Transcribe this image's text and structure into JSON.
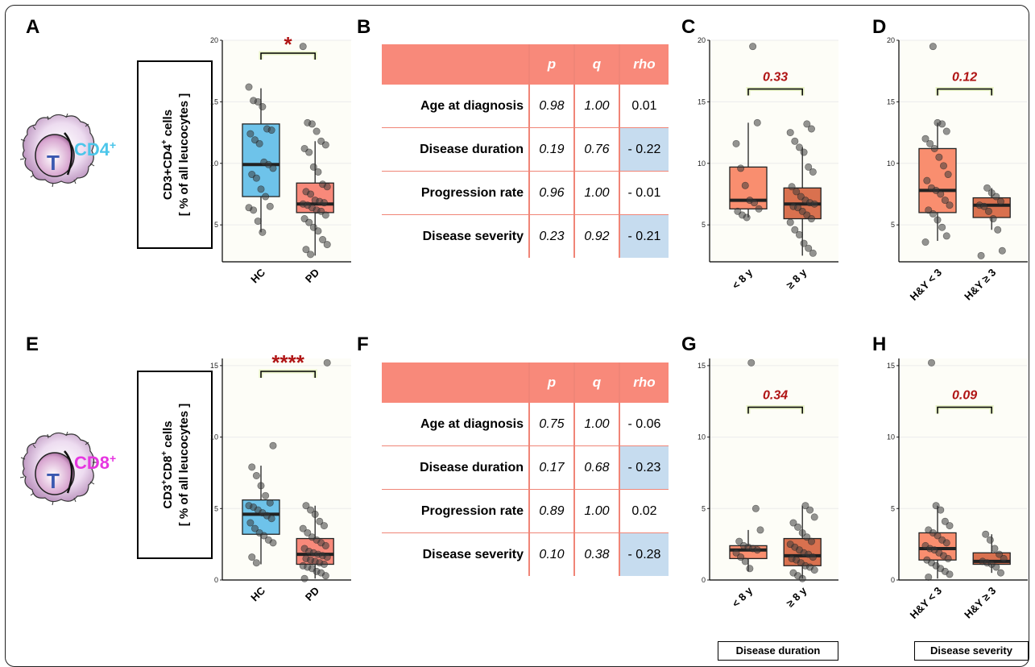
{
  "panels": {
    "A": "A",
    "B": "B",
    "C": "C",
    "D": "D",
    "E": "E",
    "F": "F",
    "G": "G",
    "H": "H"
  },
  "cd4": {
    "marker": "CD4",
    "marker_sup": "+",
    "ylabel_line1_pre": "CD3+CD4",
    "ylabel_line1_sup": "+",
    "ylabel_line1_post": " cells",
    "ylabel_line2": "[ % of all leucocytes ]"
  },
  "cd8": {
    "marker": "CD8",
    "marker_sup": "+",
    "ylabel_line1_a": "CD3",
    "ylabel_line1_sup1": "+",
    "ylabel_line1_b": "CD8",
    "ylabel_line1_sup2": "+",
    "ylabel_line1_post": " cells",
    "ylabel_line2": "[ % of all leucocytes ]"
  },
  "icon_letter": "T",
  "table_B": {
    "headers": [
      "",
      "p",
      "q",
      "rho"
    ],
    "rows": [
      {
        "label": "Age at diagnosis",
        "p": "0.98",
        "q": "1.00",
        "rho": "0.01",
        "highlight": false
      },
      {
        "label": "Disease duration",
        "p": "0.19",
        "q": "0.76",
        "rho": "- 0.22",
        "highlight": true
      },
      {
        "label": "Progression rate",
        "p": "0.96",
        "q": "1.00",
        "rho": "- 0.01",
        "highlight": false
      },
      {
        "label": "Disease severity",
        "p": "0.23",
        "q": "0.92",
        "rho": "- 0.21",
        "highlight": true
      }
    ]
  },
  "table_F": {
    "headers": [
      "",
      "p",
      "q",
      "rho"
    ],
    "rows": [
      {
        "label": "Age at diagnosis",
        "p": "0.75",
        "q": "1.00",
        "rho": "- 0.06",
        "highlight": false
      },
      {
        "label": "Disease duration",
        "p": "0.17",
        "q": "0.68",
        "rho": "- 0.23",
        "highlight": true
      },
      {
        "label": "Progression rate",
        "p": "0.89",
        "q": "1.00",
        "rho": "0.02",
        "highlight": false
      },
      {
        "label": "Disease severity",
        "p": "0.10",
        "q": "0.38",
        "rho": "- 0.28",
        "highlight": true
      }
    ]
  },
  "captions": {
    "duration": "Disease duration",
    "severity": "Disease severity"
  },
  "chart_data": [
    {
      "id": "A",
      "type": "box",
      "categories": [
        "HC",
        "PD"
      ],
      "ylim": [
        2,
        20
      ],
      "yticks": [
        5,
        10,
        15,
        20
      ],
      "colors": [
        "#6ec3ea",
        "#f8897a"
      ],
      "annotation": "*",
      "annotation_color": "#b01515",
      "boxes": [
        {
          "q1": 7.3,
          "median": 9.9,
          "q3": 13.2,
          "whisker_low": 4.4,
          "whisker_high": 16.1
        },
        {
          "q1": 6.0,
          "median": 6.7,
          "q3": 8.4,
          "whisker_low": 2.5,
          "whisker_high": 11.8
        }
      ],
      "points": [
        [
          16.2,
          15.1,
          15.0,
          14.6,
          12.8,
          12.7,
          12.4,
          11.9,
          11.6,
          10.1,
          9.9,
          9.6,
          9.1,
          8.8,
          7.9,
          7.3,
          6.5,
          6.4,
          6.2,
          5.3,
          4.4
        ],
        [
          19.5,
          13.3,
          13.2,
          12.6,
          11.8,
          11.5,
          11.2,
          10.9,
          9.7,
          9.3,
          8.3,
          8.1,
          7.7,
          7.5,
          7.0,
          6.9,
          6.8,
          6.7,
          6.6,
          6.4,
          6.2,
          6.1,
          5.8,
          5.5,
          5.2,
          4.8,
          4.5,
          3.8,
          3.4,
          3.0,
          2.6
        ]
      ]
    },
    {
      "id": "C",
      "type": "box",
      "categories": [
        "< 8 y",
        "≥ 8 y"
      ],
      "ylim": [
        2,
        20
      ],
      "yticks": [
        5,
        10,
        15,
        20
      ],
      "colors": [
        "#f98e6f",
        "#d9714f"
      ],
      "annotation": "0.33",
      "annotation_color": "#b01515",
      "boxes": [
        {
          "q1": 6.3,
          "median": 7.0,
          "q3": 9.7,
          "whisker_low": 5.6,
          "whisker_high": 13.3
        },
        {
          "q1": 5.5,
          "median": 6.7,
          "q3": 8.0,
          "whisker_low": 2.5,
          "whisker_high": 11.3
        }
      ],
      "points": [
        [
          19.5,
          13.3,
          11.6,
          9.6,
          8.2,
          7.0,
          6.8,
          6.3,
          6.1,
          5.8,
          5.6
        ],
        [
          13.2,
          12.8,
          12.5,
          11.8,
          11.3,
          10.9,
          9.7,
          9.3,
          8.1,
          7.7,
          7.3,
          7.0,
          6.8,
          6.7,
          6.5,
          6.4,
          6.1,
          5.8,
          5.5,
          5.2,
          4.6,
          4.2,
          3.5,
          3.1,
          2.7
        ]
      ]
    },
    {
      "id": "D",
      "type": "box",
      "categories": [
        "H&Y < 3",
        "H&Y ≥ 3"
      ],
      "ylim": [
        2,
        20
      ],
      "yticks": [
        5,
        10,
        15,
        20
      ],
      "colors": [
        "#f98e6f",
        "#d9714f"
      ],
      "annotation": "0.12",
      "annotation_color": "#b01515",
      "boxes": [
        {
          "q1": 6.0,
          "median": 7.8,
          "q3": 11.2,
          "whisker_low": 3.7,
          "whisker_high": 13.3
        },
        {
          "q1": 5.6,
          "median": 6.6,
          "q3": 7.2,
          "whisker_low": 4.6,
          "whisker_high": 8.0
        }
      ],
      "points": [
        [
          19.5,
          13.3,
          13.2,
          12.6,
          12.0,
          11.6,
          11.2,
          10.5,
          9.8,
          9.1,
          8.6,
          8.0,
          7.8,
          7.5,
          7.0,
          6.6,
          6.2,
          5.9,
          5.4,
          4.8,
          4.1,
          3.6
        ],
        [
          8.0,
          7.6,
          7.3,
          6.9,
          6.6,
          6.5,
          6.1,
          5.5,
          4.6,
          2.9,
          2.5
        ]
      ]
    },
    {
      "id": "E",
      "type": "box",
      "categories": [
        "HC",
        "PD"
      ],
      "ylim": [
        0,
        15.5
      ],
      "yticks": [
        0,
        5,
        10,
        15
      ],
      "colors": [
        "#6ec3ea",
        "#f8897a"
      ],
      "annotation": "****",
      "annotation_color": "#b01515",
      "boxes": [
        {
          "q1": 3.2,
          "median": 4.6,
          "q3": 5.6,
          "whisker_low": 1.1,
          "whisker_high": 8.0
        },
        {
          "q1": 1.1,
          "median": 1.8,
          "q3": 2.9,
          "whisker_low": 0.1,
          "whisker_high": 5.2
        }
      ],
      "points": [
        [
          9.4,
          7.9,
          7.3,
          6.6,
          5.9,
          5.4,
          5.2,
          5.1,
          4.9,
          4.7,
          4.5,
          4.3,
          4.0,
          3.6,
          3.3,
          3.1,
          2.8,
          2.6,
          1.6,
          1.2
        ],
        [
          15.2,
          5.2,
          4.9,
          4.6,
          4.1,
          3.8,
          3.6,
          3.3,
          3.0,
          2.8,
          2.6,
          2.4,
          2.2,
          2.0,
          1.9,
          1.8,
          1.7,
          1.6,
          1.5,
          1.4,
          1.3,
          1.2,
          1.1,
          1.0,
          0.9,
          0.8,
          0.6,
          0.5,
          0.3,
          0.1
        ]
      ]
    },
    {
      "id": "G",
      "type": "box",
      "categories": [
        "< 8 y",
        "≥ 8 y"
      ],
      "ylim": [
        0,
        15.5
      ],
      "yticks": [
        0,
        5,
        10,
        15
      ],
      "colors": [
        "#f98e6f",
        "#d9714f"
      ],
      "annotation": "0.34",
      "annotation_color": "#b01515",
      "boxes": [
        {
          "q1": 1.5,
          "median": 2.1,
          "q3": 2.4,
          "whisker_low": 0.6,
          "whisker_high": 3.5
        },
        {
          "q1": 1.0,
          "median": 1.7,
          "q3": 2.9,
          "whisker_low": 0.1,
          "whisker_high": 5.2
        }
      ],
      "points": [
        [
          15.2,
          5.0,
          3.5,
          2.7,
          2.4,
          2.3,
          2.2,
          2.1,
          1.9,
          1.6,
          1.3,
          0.8
        ],
        [
          5.2,
          4.9,
          4.4,
          4.0,
          3.7,
          3.3,
          3.0,
          2.7,
          2.5,
          2.3,
          2.1,
          1.9,
          1.8,
          1.6,
          1.5,
          1.4,
          1.2,
          1.0,
          0.9,
          0.7,
          0.5,
          0.3,
          0.1
        ]
      ]
    },
    {
      "id": "H",
      "type": "box",
      "categories": [
        "H&Y < 3",
        "H&Y ≥ 3"
      ],
      "ylim": [
        0,
        15.5
      ],
      "yticks": [
        0,
        5,
        10,
        15
      ],
      "colors": [
        "#f98e6f",
        "#d9714f"
      ],
      "annotation": "0.09",
      "annotation_color": "#b01515",
      "boxes": [
        {
          "q1": 1.4,
          "median": 2.2,
          "q3": 3.3,
          "whisker_low": 0.1,
          "whisker_high": 5.2
        },
        {
          "q1": 1.1,
          "median": 1.3,
          "q3": 1.9,
          "whisker_low": 0.5,
          "whisker_high": 3.2
        }
      ],
      "points": [
        [
          15.2,
          5.2,
          4.9,
          4.1,
          3.8,
          3.5,
          3.3,
          3.1,
          2.8,
          2.6,
          2.4,
          2.2,
          2.1,
          1.9,
          1.7,
          1.5,
          1.4,
          1.2,
          1.0,
          0.8,
          0.6,
          0.4,
          0.2
        ],
        [
          3.2,
          2.8,
          2.2,
          1.8,
          1.5,
          1.3,
          1.2,
          1.1,
          0.9,
          0.5
        ]
      ]
    }
  ]
}
